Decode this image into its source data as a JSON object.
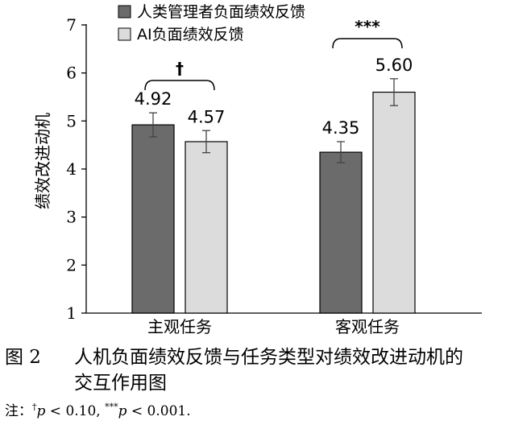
{
  "chart_data": {
    "type": "bar",
    "categories": [
      "主观任务",
      "客观任务"
    ],
    "series": [
      {
        "name": "人类管理者负面绩效反馈",
        "values": [
          4.92,
          4.35
        ],
        "errors": [
          0.25,
          0.22
        ],
        "color": "#6b6b6b"
      },
      {
        "name": "AI负面绩效反馈",
        "values": [
          4.57,
          5.6
        ],
        "errors": [
          0.23,
          0.28
        ],
        "color": "#dcdcdc"
      }
    ],
    "value_labels": [
      [
        "4.92",
        "4.35"
      ],
      [
        "4.57",
        "5.60"
      ]
    ],
    "ylabel": "绩效改进动机",
    "ylim": [
      1,
      7
    ],
    "yticks": [
      "1",
      "2",
      "3",
      "4",
      "5",
      "6",
      "7"
    ],
    "significance": [
      "†",
      "***"
    ],
    "legend_position": "top"
  },
  "caption": {
    "label": "图 2",
    "line1": "人机负面绩效反馈与任务类型对绩效改进动机的",
    "line2": "交互作用图"
  },
  "note": {
    "prefix": "注：",
    "dagger": "†",
    "p1_rest": "< 0.10, ",
    "stars": "***",
    "p2_rest": "< 0.001.",
    "p_symbol": "p"
  }
}
